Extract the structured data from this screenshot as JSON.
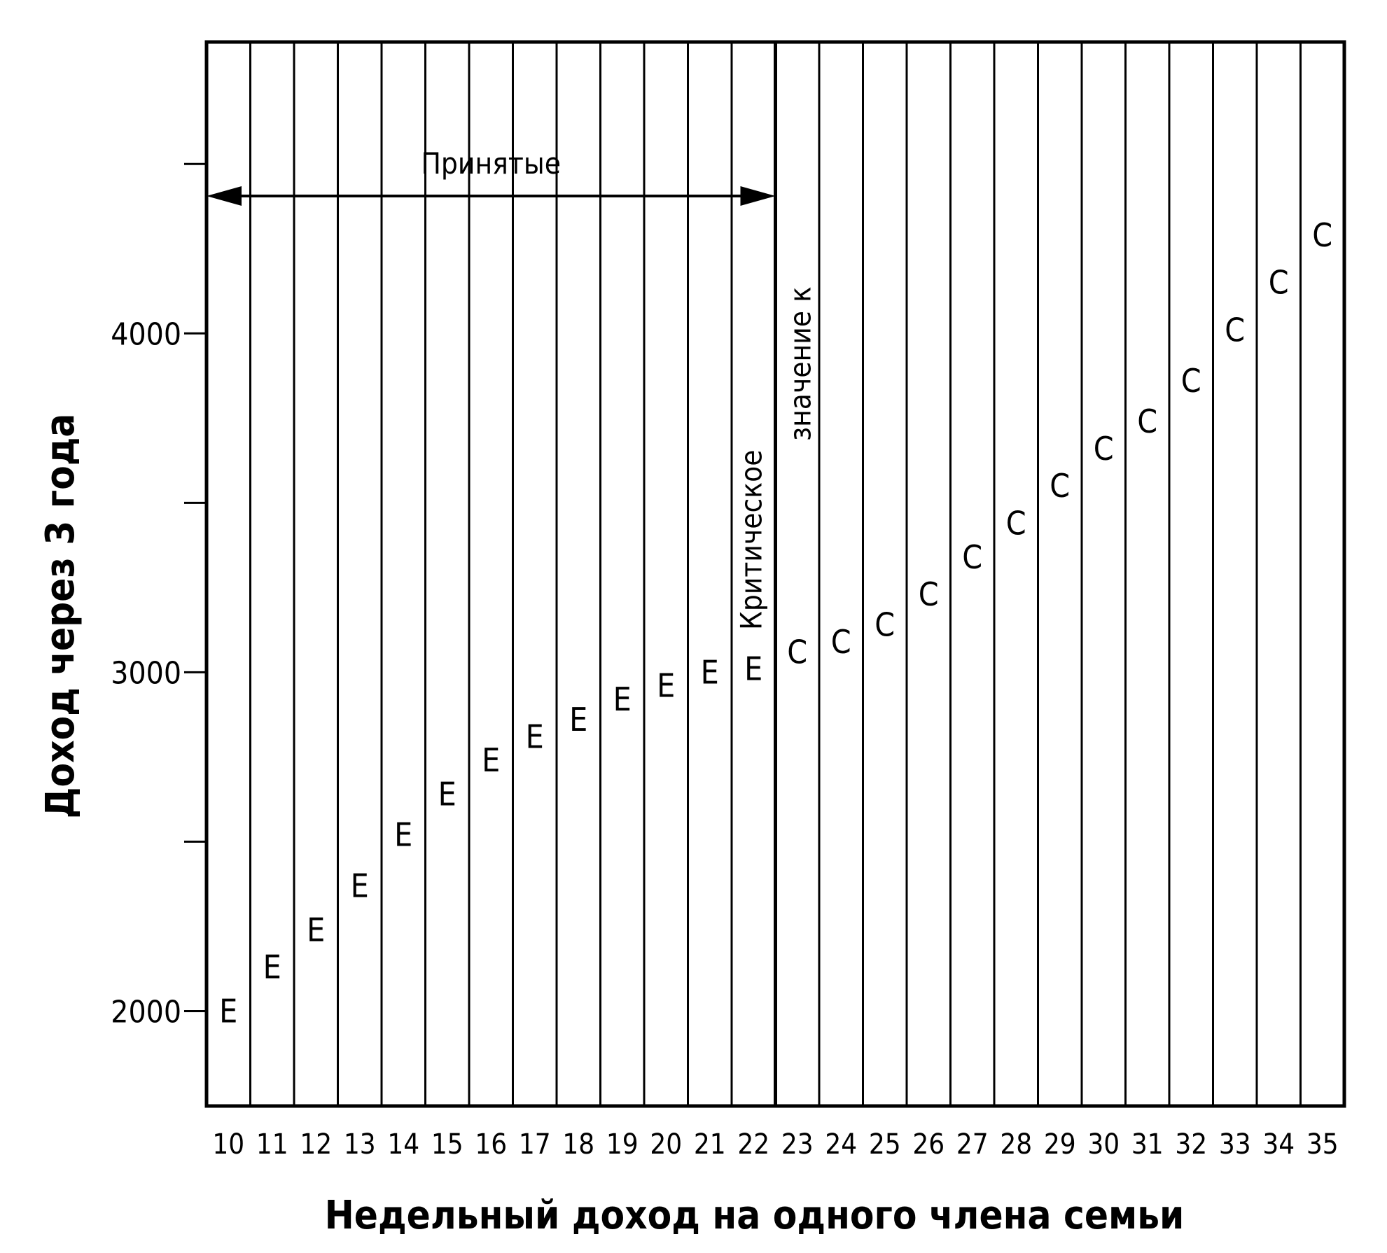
{
  "chart_data": {
    "type": "scatter",
    "xlabel": "Недельный доход на одного члена семьи",
    "ylabel": "Доход через 3 года",
    "x_categories": [
      "10",
      "11",
      "12",
      "13",
      "14",
      "15",
      "16",
      "17",
      "18",
      "19",
      "20",
      "21",
      "22",
      "23",
      "24",
      "25",
      "26",
      "27",
      "28",
      "29",
      "30",
      "31",
      "32",
      "33",
      "34",
      "35"
    ],
    "y_ticks": [
      {
        "value": 2000,
        "label": "2000"
      },
      {
        "value": 2500,
        "label": ""
      },
      {
        "value": 3000,
        "label": "3000"
      },
      {
        "value": 3500,
        "label": ""
      },
      {
        "value": 4000,
        "label": "4000"
      },
      {
        "value": 4500,
        "label": ""
      }
    ],
    "ylim": [
      1720,
      4860
    ],
    "grid": "vertical",
    "critical_value": 22.5,
    "points": [
      {
        "x": 10,
        "y": 2000,
        "marker": "E"
      },
      {
        "x": 11,
        "y": 2130,
        "marker": "E"
      },
      {
        "x": 12,
        "y": 2240,
        "marker": "E"
      },
      {
        "x": 13,
        "y": 2370,
        "marker": "E"
      },
      {
        "x": 14,
        "y": 2520,
        "marker": "E"
      },
      {
        "x": 15,
        "y": 2640,
        "marker": "E"
      },
      {
        "x": 16,
        "y": 2740,
        "marker": "E"
      },
      {
        "x": 17,
        "y": 2810,
        "marker": "E"
      },
      {
        "x": 18,
        "y": 2860,
        "marker": "E"
      },
      {
        "x": 19,
        "y": 2920,
        "marker": "E"
      },
      {
        "x": 20,
        "y": 2960,
        "marker": "E"
      },
      {
        "x": 21,
        "y": 3000,
        "marker": "E"
      },
      {
        "x": 22,
        "y": 3010,
        "marker": "E"
      },
      {
        "x": 23,
        "y": 3060,
        "marker": "C"
      },
      {
        "x": 24,
        "y": 3090,
        "marker": "C"
      },
      {
        "x": 25,
        "y": 3140,
        "marker": "C"
      },
      {
        "x": 26,
        "y": 3230,
        "marker": "C"
      },
      {
        "x": 27,
        "y": 3340,
        "marker": "C"
      },
      {
        "x": 28,
        "y": 3440,
        "marker": "C"
      },
      {
        "x": 29,
        "y": 3550,
        "marker": "C"
      },
      {
        "x": 30,
        "y": 3660,
        "marker": "C"
      },
      {
        "x": 31,
        "y": 3740,
        "marker": "C"
      },
      {
        "x": 32,
        "y": 3860,
        "marker": "C"
      },
      {
        "x": 33,
        "y": 4010,
        "marker": "C"
      },
      {
        "x": 34,
        "y": 4150,
        "marker": "C"
      },
      {
        "x": 35,
        "y": 4290,
        "marker": "C"
      }
    ],
    "annotations": {
      "accepted": "Принятые",
      "critical_line1": "Критическое",
      "critical_line2": "значение κ"
    }
  }
}
